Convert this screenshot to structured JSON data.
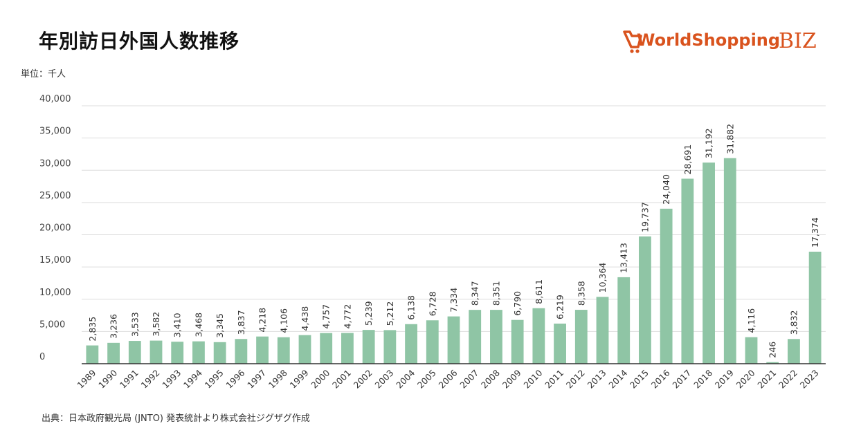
{
  "title": "年別訪日外国人数推移",
  "unit_label": "単位：千人",
  "source": "出典：日本政府観光局 (JNTO) 発表統計より株式会社ジグザグ作成",
  "logo": {
    "main": "WorldShopping",
    "suffix": "BIZ",
    "icon": "shopping-cart-icon",
    "color": "#d9531e"
  },
  "colors": {
    "bar": "#8fc5a5",
    "grid": "#dddddd",
    "axis": "#333333"
  },
  "chart_data": {
    "type": "bar",
    "title": "年別訪日外国人数推移",
    "ylabel": "単位：千人",
    "xlabel": "",
    "ylim": [
      0,
      40000
    ],
    "yticks": [
      "0",
      "5,000",
      "10,000",
      "15,000",
      "20,000",
      "25,000",
      "30,000",
      "35,000",
      "40,000"
    ],
    "grid": true,
    "categories": [
      "1989",
      "1990",
      "1991",
      "1992",
      "1993",
      "1994",
      "1995",
      "1996",
      "1997",
      "1998",
      "1999",
      "2000",
      "2001",
      "2002",
      "2003",
      "2004",
      "2005",
      "2006",
      "2007",
      "2008",
      "2009",
      "2010",
      "2011",
      "2012",
      "2013",
      "2014",
      "2015",
      "2016",
      "2017",
      "2018",
      "2019",
      "2020",
      "2021",
      "2022",
      "2023"
    ],
    "values": [
      2835,
      3236,
      3533,
      3582,
      3410,
      3468,
      3345,
      3837,
      4218,
      4106,
      4438,
      4757,
      4772,
      5239,
      5212,
      6138,
      6728,
      7334,
      8347,
      8351,
      6790,
      8611,
      6219,
      8358,
      10364,
      13413,
      19737,
      24040,
      28691,
      31192,
      31882,
      4116,
      246,
      3832,
      17374
    ],
    "labels": [
      "2,835",
      "3,236",
      "3,533",
      "3,582",
      "3,410",
      "3,468",
      "3,345",
      "3,837",
      "4,218",
      "4,106",
      "4,438",
      "4,757",
      "4,772",
      "5,239",
      "5,212",
      "6,138",
      "6,728",
      "7,334",
      "8,347",
      "8,351",
      "6,790",
      "8,611",
      "6,219",
      "8,358",
      "10,364",
      "13,413",
      "19,737",
      "24,040",
      "28,691",
      "31,192",
      "31,882",
      "4,116",
      "246",
      "3,832",
      "17,374"
    ]
  }
}
